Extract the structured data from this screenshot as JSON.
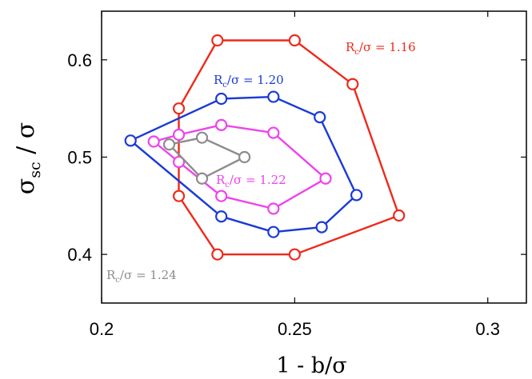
{
  "chart_data": {
    "type": "line",
    "xlabel": "1 - b/σ",
    "ylabel": {
      "main": "σ",
      "sub": "sc",
      "rest": " / σ"
    },
    "xlim": [
      0.2,
      0.31
    ],
    "ylim": [
      0.35,
      0.65
    ],
    "xticks": [
      {
        "value": 0.2,
        "label": "0.2"
      },
      {
        "value": 0.25,
        "label": "0.25"
      },
      {
        "value": 0.3,
        "label": "0.3"
      }
    ],
    "yticks": [
      {
        "value": 0.4,
        "label": "0.4"
      },
      {
        "value": 0.5,
        "label": "0.5"
      },
      {
        "value": 0.6,
        "label": "0.6"
      }
    ],
    "grid": false,
    "series": [
      {
        "label": {
          "pre": "R",
          "sub": "c",
          "post": "/σ = 1.16"
        },
        "color": "#ee2a1b",
        "closed": true,
        "points": [
          [
            0.22,
            0.55
          ],
          [
            0.23,
            0.62
          ],
          [
            0.25,
            0.62
          ],
          [
            0.265,
            0.575
          ],
          [
            0.277,
            0.44
          ],
          [
            0.25,
            0.4
          ],
          [
            0.23,
            0.4
          ],
          [
            0.22,
            0.46
          ]
        ]
      },
      {
        "label": {
          "pre": "R",
          "sub": "c",
          "post": "/σ = 1.20"
        },
        "color": "#1a3ad6",
        "closed": true,
        "points": [
          [
            0.2075,
            0.517
          ],
          [
            0.231,
            0.56
          ],
          [
            0.2445,
            0.562
          ],
          [
            0.2565,
            0.541
          ],
          [
            0.266,
            0.461
          ],
          [
            0.257,
            0.428
          ],
          [
            0.2445,
            0.423
          ],
          [
            0.231,
            0.439
          ]
        ]
      },
      {
        "label": {
          "pre": "R",
          "sub": "c",
          "post": "/σ = 1.22"
        },
        "color": "#ee43ec",
        "closed": true,
        "points": [
          [
            0.2135,
            0.516
          ],
          [
            0.22,
            0.523
          ],
          [
            0.231,
            0.533
          ],
          [
            0.2445,
            0.525
          ],
          [
            0.258,
            0.478
          ],
          [
            0.2445,
            0.447
          ],
          [
            0.231,
            0.46
          ],
          [
            0.22,
            0.495
          ]
        ]
      },
      {
        "label": {
          "pre": "R",
          "sub": "c",
          "post": "/σ = 1.24"
        },
        "color": "#8c8c8c",
        "closed": true,
        "points": [
          [
            0.2175,
            0.513
          ],
          [
            0.226,
            0.52
          ],
          [
            0.237,
            0.5
          ],
          [
            0.226,
            0.478
          ]
        ]
      }
    ]
  }
}
